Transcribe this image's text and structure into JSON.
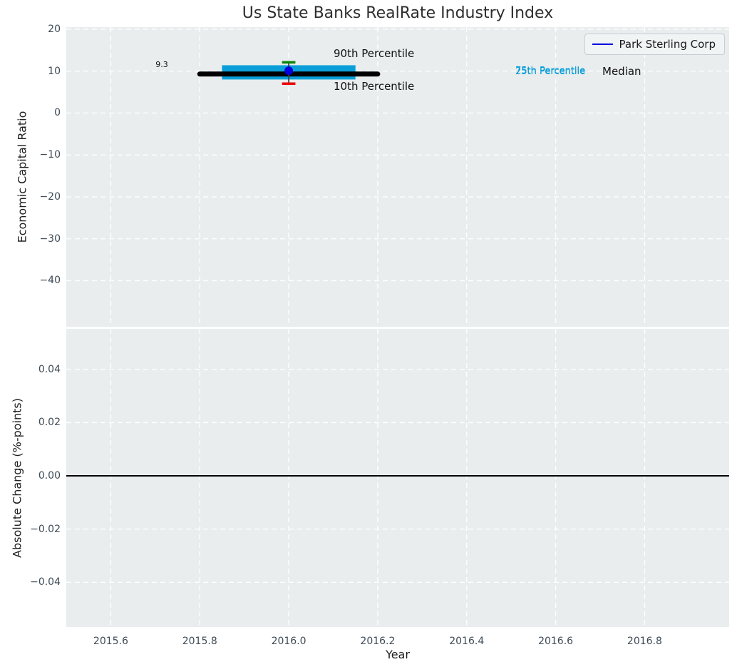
{
  "title": "Us State Banks RealRate Industry Index",
  "x_axis": {
    "label": "Year",
    "ticks": [
      "2015.6",
      "2015.8",
      "2016.0",
      "2016.2",
      "2016.4",
      "2016.6",
      "2016.8"
    ]
  },
  "top_plot": {
    "ylabel": "Economic Capital Ratio",
    "yticks": [
      "20",
      "10",
      "0",
      "−10",
      "−20",
      "−30",
      "−40"
    ],
    "annotations": {
      "value_label": "9.3",
      "p90_label": "90th Percentile",
      "p10_label": "10th Percentile",
      "p75_label": "75th Percentile",
      "p25_label": "25th Percentile",
      "median_label": "Median"
    },
    "legend": {
      "label": "Park Sterling Corp"
    }
  },
  "bottom_plot": {
    "ylabel": "Absolute Change (%-points)",
    "yticks": [
      "0.04",
      "0.02",
      "0.00",
      "−0.02",
      "−0.04"
    ]
  },
  "colors": {
    "plot_background": "#e9edee",
    "gridline": "#ffffff",
    "iqr_band": "#0a9ed9",
    "median_line": "#000000",
    "p90_cap": "#098509",
    "p10_cap": "#ee0000",
    "company_point": "#0000dd",
    "legend_line": "#0000dd",
    "tick_text": "#3e4b57",
    "cyan_annotation_text": "#0a9ed9"
  },
  "chart_data": [
    {
      "type": "line",
      "title": "Us State Banks RealRate Industry Index",
      "xlabel": "Year",
      "ylabel": "Economic Capital Ratio",
      "xlim": [
        2015.5,
        2016.99
      ],
      "ylim": [
        -51.0,
        20.5
      ],
      "xticks": [
        2015.6,
        2015.8,
        2016.0,
        2016.2,
        2016.4,
        2016.6,
        2016.8
      ],
      "yticks": [
        20,
        10,
        0,
        -10,
        -20,
        -30,
        -40
      ],
      "grid": true,
      "legend_position": "upper right",
      "legend_entries": [
        {
          "label": "Park Sterling Corp",
          "color": "#0000dd"
        }
      ],
      "series": [
        {
          "name": "Interquartile band (25th-75th percentile)",
          "mark": "band",
          "x": [
            2015.85,
            2016.15
          ],
          "y_low": 8.0,
          "y_high": 11.4,
          "color": "#0a9ed9"
        },
        {
          "name": "Median",
          "mark": "line",
          "x": [
            2015.8,
            2016.2
          ],
          "y": [
            9.3,
            9.3
          ],
          "color": "#000000",
          "linewidth": 7,
          "value_label": "9.3"
        },
        {
          "name": "Percentile whisker stem",
          "mark": "line",
          "x": [
            2016.0,
            2016.0
          ],
          "y": [
            7.0,
            12.1
          ],
          "color": "#404040",
          "linewidth": 1.8
        },
        {
          "name": "90th Percentile",
          "mark": "cap",
          "x": 2016.0,
          "y": 12.1,
          "cap_halfwidth_x": 0.015,
          "color": "#098509"
        },
        {
          "name": "10th Percentile",
          "mark": "cap",
          "x": 2016.0,
          "y": 7.0,
          "cap_halfwidth_x": 0.015,
          "color": "#ee0000"
        },
        {
          "name": "Park Sterling Corp",
          "mark": "point",
          "x": 2016.0,
          "y": 10.1,
          "radius": 6,
          "color": "#0000dd"
        }
      ]
    },
    {
      "type": "line",
      "xlabel": "Year",
      "ylabel": "Absolute Change (%-points)",
      "xlim": [
        2015.5,
        2016.99
      ],
      "ylim": [
        -0.0568,
        0.0552
      ],
      "xticks": [
        2015.6,
        2015.8,
        2016.0,
        2016.2,
        2016.4,
        2016.6,
        2016.8
      ],
      "yticks": [
        0.04,
        0.02,
        0.0,
        -0.02,
        -0.04
      ],
      "grid": true,
      "series": [
        {
          "name": "Zero line",
          "mark": "line",
          "x": [
            2015.5,
            2016.99
          ],
          "y": [
            0,
            0
          ],
          "color": "#000000",
          "linewidth": 2
        }
      ]
    }
  ]
}
